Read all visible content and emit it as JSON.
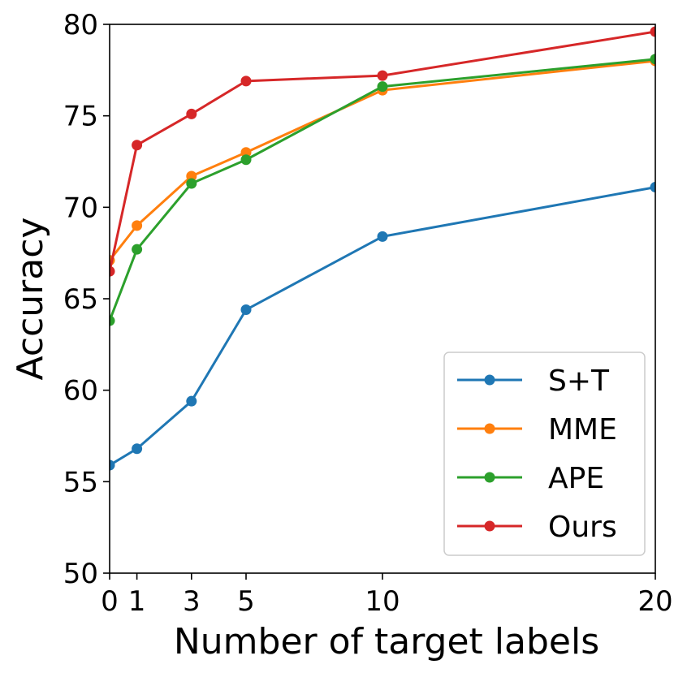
{
  "chart_data": {
    "type": "line",
    "title": "",
    "xlabel": "Number of target labels",
    "ylabel": "Accuracy",
    "xlim": [
      0,
      20
    ],
    "ylim": [
      50,
      80
    ],
    "x_ticks": [
      0,
      1,
      3,
      5,
      10,
      20
    ],
    "y_ticks": [
      50,
      55,
      60,
      65,
      70,
      75,
      80
    ],
    "grid": false,
    "legend_position": "bottom-right",
    "x": [
      0,
      1,
      3,
      5,
      10,
      20
    ],
    "series": [
      {
        "name": "S+T",
        "color": "#1f77b4",
        "values": [
          55.9,
          56.8,
          59.4,
          64.4,
          68.4,
          71.1
        ]
      },
      {
        "name": "MME",
        "color": "#ff7f0e",
        "values": [
          67.1,
          69.0,
          71.7,
          73.0,
          76.4,
          78.0
        ]
      },
      {
        "name": "APE",
        "color": "#2ca02c",
        "values": [
          63.8,
          67.7,
          71.3,
          72.6,
          76.6,
          78.1
        ]
      },
      {
        "name": "Ours",
        "color": "#d62728",
        "values": [
          66.5,
          73.4,
          75.1,
          76.9,
          77.2,
          79.6
        ]
      }
    ]
  }
}
